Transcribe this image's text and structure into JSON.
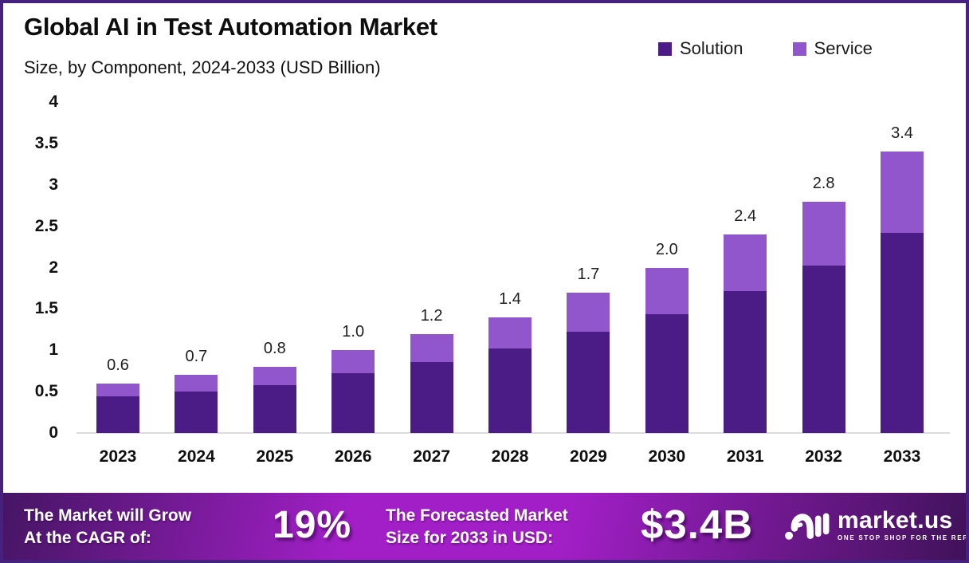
{
  "header": {
    "title": "Global AI in Test Automation Market",
    "subtitle": "Size, by Component, 2024-2033 (USD Billion)"
  },
  "legend": {
    "position": "top-right",
    "items": [
      {
        "label": "Solution",
        "color": "#4B1C85"
      },
      {
        "label": "Service",
        "color": "#9156CC"
      }
    ]
  },
  "chart_data": {
    "type": "bar",
    "stacked": true,
    "title": "Global AI in Test Automation Market Size, by Component, 2024-2033 (USD Billion)",
    "xlabel": "",
    "ylabel": "",
    "ylim": [
      0,
      4
    ],
    "grid": false,
    "legend_position": "top-right",
    "categories": [
      "2023",
      "2024",
      "2025",
      "2026",
      "2027",
      "2028",
      "2029",
      "2030",
      "2031",
      "2032",
      "2033"
    ],
    "series": [
      {
        "name": "Solution",
        "color": "#4B1C85",
        "values": [
          0.44,
          0.5,
          0.58,
          0.72,
          0.86,
          1.02,
          1.22,
          1.44,
          1.72,
          2.02,
          2.42
        ]
      },
      {
        "name": "Service",
        "color": "#9156CC",
        "values": [
          0.16,
          0.2,
          0.22,
          0.28,
          0.34,
          0.38,
          0.48,
          0.56,
          0.68,
          0.78,
          0.98
        ]
      }
    ],
    "total_labels": [
      "0.6",
      "0.7",
      "0.8",
      "1.0",
      "1.2",
      "1.4",
      "1.7",
      "2.0",
      "2.4",
      "2.8",
      "3.4"
    ],
    "ytick_values": [
      4,
      3.5,
      3,
      2.5,
      2,
      1.5,
      1,
      0.5,
      0
    ],
    "ytick_labels": [
      "4",
      "3.5",
      "3",
      "2.5",
      "2",
      "1.5",
      "1",
      "0.5",
      "0"
    ]
  },
  "banner": {
    "growth_label_line1": "The Market will Grow",
    "growth_label_line2": "At the CAGR of:",
    "cagr_value": "19%",
    "forecast_label_line1": "The Forecasted Market",
    "forecast_label_line2": "Size for 2033 in USD:",
    "forecast_value": "$3.4B",
    "brand_name": "market.us",
    "brand_tagline": "ONE STOP SHOP FOR THE REPORTS"
  },
  "colors": {
    "solution": "#4B1C85",
    "service": "#9156CC",
    "frame_border": "#47217E",
    "axis_line": "#DCDCDC",
    "banner_edge_left": "#451563",
    "banner_center": "#A21FC7",
    "banner_edge_right": "#3F1259",
    "text": "#0d0d0d"
  }
}
